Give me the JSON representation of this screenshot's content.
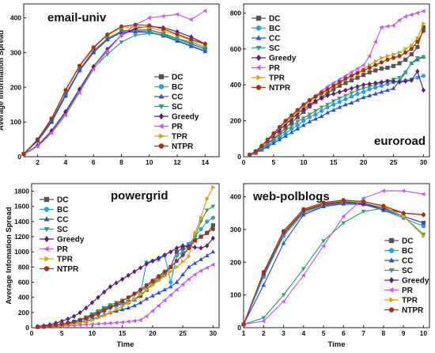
{
  "series_style": [
    {
      "name": "DC",
      "color": "#555555",
      "marker": "square"
    },
    {
      "name": "BC",
      "color": "#2e9be6",
      "marker": "circle"
    },
    {
      "name": "CC",
      "color": "#2f52c8",
      "marker": "triangle-up"
    },
    {
      "name": "SC",
      "color": "#33a074",
      "marker": "triangle-down"
    },
    {
      "name": "Greedy",
      "color": "#5a1f7a",
      "marker": "diamond"
    },
    {
      "name": "PR",
      "color": "#c45ee8",
      "marker": "triangle-left"
    },
    {
      "name": "TPR",
      "color": "#d9a210",
      "marker": "triangle-right"
    },
    {
      "name": "NTPR",
      "color": "#a03316",
      "marker": "circle"
    }
  ],
  "chart_data": [
    {
      "id": "email-univ",
      "type": "line",
      "title": "email-univ",
      "title_position": "top-left",
      "xlabel": "",
      "ylabel": "Average Information Spread",
      "xlim": [
        1,
        15
      ],
      "ylim": [
        0,
        440
      ],
      "xticks": [
        2,
        4,
        6,
        8,
        10,
        12,
        14
      ],
      "yticks": [
        0,
        100,
        200,
        300,
        400
      ],
      "legend_position": "bottom-right",
      "x": [
        1,
        2,
        3,
        4,
        5,
        6,
        7,
        8,
        9,
        10,
        11,
        12,
        13,
        14
      ],
      "series": [
        {
          "name": "DC",
          "values": [
            8,
            48,
            105,
            180,
            250,
            305,
            340,
            362,
            365,
            365,
            355,
            340,
            325,
            310
          ]
        },
        {
          "name": "BC",
          "values": [
            8,
            45,
            100,
            175,
            248,
            300,
            338,
            360,
            362,
            360,
            350,
            336,
            320,
            305
          ]
        },
        {
          "name": "CC",
          "values": [
            8,
            45,
            100,
            175,
            248,
            300,
            337,
            358,
            360,
            358,
            348,
            333,
            318,
            303
          ]
        },
        {
          "name": "SC",
          "values": [
            6,
            30,
            70,
            125,
            190,
            255,
            295,
            330,
            350,
            355,
            352,
            340,
            330,
            315
          ]
        },
        {
          "name": "Greedy",
          "values": [
            8,
            32,
            75,
            130,
            195,
            260,
            310,
            350,
            370,
            375,
            372,
            360,
            345,
            325
          ]
        },
        {
          "name": "PR",
          "values": [
            8,
            30,
            68,
            120,
            185,
            252,
            305,
            350,
            380,
            400,
            405,
            410,
            395,
            420
          ]
        },
        {
          "name": "TPR",
          "values": [
            8,
            50,
            110,
            190,
            260,
            312,
            350,
            372,
            375,
            372,
            362,
            350,
            335,
            322
          ]
        },
        {
          "name": "NTPR",
          "values": [
            8,
            50,
            110,
            192,
            262,
            315,
            352,
            375,
            380,
            378,
            368,
            353,
            338,
            325
          ]
        }
      ]
    },
    {
      "id": "euroroad",
      "type": "line",
      "title": "euroroad",
      "title_position": "bottom-right",
      "xlabel": "",
      "ylabel": "",
      "xlim": [
        0,
        31
      ],
      "ylim": [
        0,
        850
      ],
      "xticks": [
        0,
        5,
        10,
        15,
        20,
        25,
        30
      ],
      "yticks": [
        0,
        200,
        400,
        600,
        800
      ],
      "legend_position": "top-left",
      "x": [
        1,
        2,
        3,
        4,
        5,
        6,
        7,
        8,
        9,
        10,
        11,
        12,
        13,
        14,
        15,
        16,
        17,
        18,
        19,
        20,
        21,
        22,
        23,
        24,
        25,
        26,
        27,
        28,
        29,
        30
      ],
      "series": [
        {
          "name": "DC",
          "values": [
            10,
            25,
            50,
            75,
            100,
            130,
            160,
            190,
            220,
            250,
            280,
            305,
            330,
            355,
            375,
            395,
            410,
            425,
            440,
            455,
            470,
            480,
            490,
            495,
            505,
            520,
            540,
            570,
            610,
            720
          ]
        },
        {
          "name": "BC",
          "values": [
            10,
            20,
            40,
            60,
            85,
            105,
            130,
            155,
            175,
            200,
            220,
            235,
            255,
            275,
            290,
            305,
            320,
            335,
            350,
            360,
            375,
            385,
            395,
            405,
            415,
            420,
            425,
            430,
            440,
            450
          ]
        },
        {
          "name": "CC",
          "values": [
            8,
            20,
            38,
            55,
            75,
            95,
            115,
            135,
            155,
            175,
            195,
            210,
            225,
            245,
            260,
            275,
            290,
            300,
            315,
            330,
            340,
            350,
            360,
            370,
            380,
            420,
            470,
            520,
            540,
            555
          ]
        },
        {
          "name": "SC",
          "values": [
            8,
            22,
            45,
            70,
            95,
            120,
            145,
            170,
            195,
            215,
            235,
            255,
            275,
            290,
            310,
            325,
            340,
            355,
            370,
            380,
            390,
            400,
            410,
            420,
            430,
            440,
            470,
            520,
            550,
            555
          ]
        },
        {
          "name": "Greedy",
          "values": [
            10,
            30,
            60,
            90,
            120,
            150,
            180,
            210,
            240,
            265,
            290,
            310,
            325,
            340,
            350,
            360,
            370,
            380,
            390,
            400,
            405,
            410,
            415,
            420,
            420,
            415,
            420,
            425,
            475,
            370
          ]
        },
        {
          "name": "PR",
          "values": [
            10,
            30,
            60,
            95,
            130,
            165,
            195,
            225,
            255,
            285,
            315,
            340,
            365,
            390,
            410,
            430,
            450,
            470,
            490,
            510,
            560,
            640,
            720,
            725,
            730,
            760,
            780,
            790,
            800,
            810
          ]
        },
        {
          "name": "TPR",
          "values": [
            10,
            30,
            60,
            95,
            125,
            160,
            190,
            220,
            250,
            280,
            305,
            330,
            350,
            370,
            390,
            410,
            430,
            450,
            470,
            490,
            510,
            530,
            550,
            560,
            570,
            580,
            600,
            620,
            660,
            740
          ]
        },
        {
          "name": "NTPR",
          "values": [
            10,
            30,
            60,
            95,
            130,
            165,
            200,
            230,
            260,
            290,
            315,
            335,
            355,
            375,
            395,
            415,
            435,
            450,
            465,
            480,
            495,
            510,
            525,
            540,
            550,
            560,
            580,
            600,
            640,
            700
          ]
        }
      ]
    },
    {
      "id": "powergrid",
      "type": "line",
      "title": "powergrid",
      "title_position": "top-center",
      "xlabel": "Time",
      "ylabel": "Average Infomation Spread",
      "xlim": [
        0,
        31
      ],
      "ylim": [
        0,
        1900
      ],
      "xticks": [
        0,
        5,
        10,
        15,
        20,
        25,
        30
      ],
      "yticks": [
        0,
        200,
        400,
        600,
        800,
        1000,
        1200,
        1400,
        1600,
        1800
      ],
      "legend_position": "top-left",
      "x": [
        1,
        2,
        3,
        4,
        5,
        6,
        7,
        8,
        9,
        10,
        11,
        12,
        13,
        14,
        15,
        16,
        17,
        18,
        19,
        20,
        21,
        22,
        23,
        24,
        25,
        26,
        27,
        28,
        29,
        30
      ],
      "series": [
        {
          "name": "DC",
          "values": [
            10,
            15,
            20,
            30,
            40,
            55,
            75,
            100,
            130,
            170,
            210,
            250,
            280,
            300,
            320,
            340,
            370,
            420,
            500,
            580,
            640,
            700,
            800,
            1000,
            1050,
            1100,
            1150,
            1200,
            1250,
            1350
          ]
        },
        {
          "name": "BC",
          "values": [
            10,
            12,
            18,
            25,
            35,
            45,
            60,
            80,
            100,
            140,
            180,
            220,
            260,
            290,
            310,
            330,
            370,
            450,
            860,
            880,
            900,
            950,
            600,
            950,
            1000,
            1100,
            1200,
            1300,
            1400,
            1450
          ]
        },
        {
          "name": "CC",
          "values": [
            10,
            12,
            15,
            20,
            28,
            38,
            50,
            65,
            85,
            110,
            140,
            170,
            200,
            220,
            240,
            260,
            290,
            330,
            380,
            420,
            460,
            500,
            540,
            600,
            700,
            800,
            850,
            900,
            950,
            1000
          ]
        },
        {
          "name": "SC",
          "values": [
            10,
            15,
            22,
            32,
            45,
            60,
            80,
            105,
            140,
            180,
            220,
            260,
            300,
            330,
            360,
            390,
            430,
            480,
            540,
            600,
            660,
            720,
            800,
            880,
            950,
            1050,
            1200,
            1400,
            1550,
            1600
          ]
        },
        {
          "name": "Greedy",
          "values": [
            15,
            25,
            40,
            60,
            85,
            115,
            150,
            200,
            260,
            330,
            400,
            470,
            540,
            590,
            640,
            690,
            740,
            790,
            840,
            880,
            920,
            960,
            1000,
            1050,
            1080,
            1070,
            1060,
            1050,
            1080,
            1180
          ]
        },
        {
          "name": "PR",
          "values": [
            5,
            8,
            12,
            16,
            20,
            25,
            30,
            35,
            40,
            45,
            50,
            55,
            60,
            65,
            70,
            80,
            90,
            100,
            150,
            220,
            290,
            360,
            430,
            500,
            570,
            640,
            700,
            750,
            790,
            830
          ]
        },
        {
          "name": "TPR",
          "values": [
            8,
            12,
            18,
            25,
            33,
            42,
            52,
            65,
            80,
            100,
            130,
            160,
            200,
            240,
            280,
            330,
            380,
            440,
            500,
            560,
            620,
            680,
            740,
            800,
            870,
            940,
            1250,
            1450,
            1700,
            1850
          ]
        },
        {
          "name": "NTPR",
          "values": [
            10,
            15,
            25,
            35,
            48,
            62,
            80,
            100,
            125,
            155,
            190,
            230,
            270,
            310,
            350,
            400,
            450,
            500,
            560,
            620,
            680,
            740,
            800,
            880,
            960,
            1050,
            1150,
            1200,
            1250,
            1300
          ]
        }
      ]
    },
    {
      "id": "web-polblogs",
      "type": "line",
      "title": "web-polblogs",
      "title_position": "top-left",
      "xlabel": "Time",
      "ylabel": "",
      "xlim": [
        1,
        10.3
      ],
      "ylim": [
        0,
        440
      ],
      "xticks": [
        1,
        2,
        3,
        4,
        5,
        6,
        7,
        8,
        9,
        10
      ],
      "yticks": [
        0,
        100,
        200,
        300,
        400
      ],
      "legend_position": "bottom-right",
      "x": [
        1,
        2,
        3,
        4,
        5,
        6,
        7,
        8,
        9,
        10
      ],
      "series": [
        {
          "name": "DC",
          "values": [
            10,
            160,
            285,
            355,
            375,
            382,
            380,
            360,
            340,
            320
          ]
        },
        {
          "name": "BC",
          "values": [
            10,
            155,
            280,
            350,
            372,
            380,
            378,
            358,
            335,
            310
          ]
        },
        {
          "name": "CC",
          "values": [
            10,
            130,
            258,
            345,
            370,
            378,
            376,
            360,
            340,
            320
          ]
        },
        {
          "name": "SC",
          "values": [
            10,
            30,
            100,
            180,
            265,
            320,
            355,
            365,
            340,
            285
          ]
        },
        {
          "name": "Greedy",
          "values": [
            10,
            165,
            290,
            358,
            378,
            385,
            380,
            365,
            350,
            345
          ]
        },
        {
          "name": "PR",
          "values": [
            10,
            20,
            80,
            160,
            250,
            340,
            395,
            418,
            418,
            408
          ]
        },
        {
          "name": "TPR",
          "values": [
            10,
            168,
            292,
            360,
            380,
            388,
            385,
            370,
            340,
            280
          ]
        },
        {
          "name": "NTPR",
          "values": [
            10,
            170,
            295,
            362,
            382,
            390,
            385,
            372,
            350,
            345
          ]
        }
      ]
    }
  ]
}
